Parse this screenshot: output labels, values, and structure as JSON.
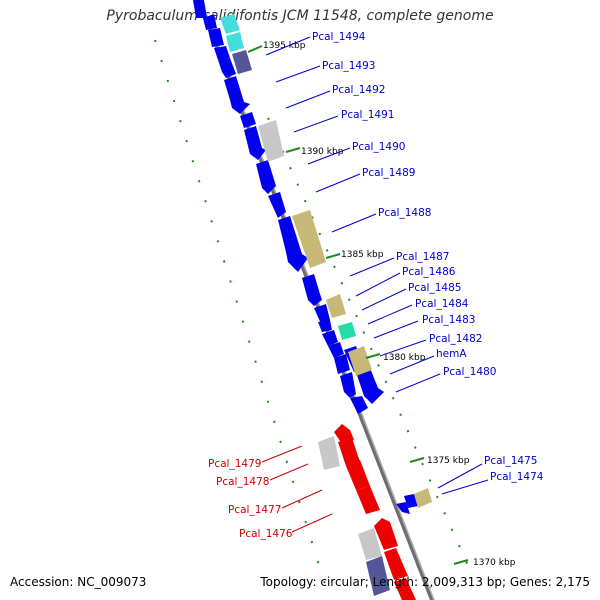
{
  "title": "Pyrobaculum calidifontis JCM 11548, complete genome",
  "accession_label": "Accession: NC_009073",
  "summary_label": "Topology: circular; Length: 2,009,313 bp; Genes: 2,175",
  "colors": {
    "backbone": "#8c8c8c",
    "forward_gene": "#0000ee",
    "reverse_gene": "#ee0000",
    "gray_feature": "#c8c8c8",
    "khaki_feature": "#c8b878",
    "cyan_feature": "#44dddd",
    "teal_feature": "#22ddaa",
    "navy_feature": "#555599",
    "forward_label": "#0000cc",
    "reverse_label": "#cc0000",
    "tick_marks": "#228822"
  },
  "kbp_markers": [
    {
      "label": "1395 kbp"
    },
    {
      "label": "1390 kbp"
    },
    {
      "label": "1385 kbp"
    },
    {
      "label": "1380 kbp"
    },
    {
      "label": "1375 kbp"
    },
    {
      "label": "1370 kbp"
    }
  ],
  "forward_labels": [
    {
      "label": "Pcal_1494"
    },
    {
      "label": "Pcal_1493"
    },
    {
      "label": "Pcal_1492"
    },
    {
      "label": "Pcal_1491"
    },
    {
      "label": "Pcal_1490"
    },
    {
      "label": "Pcal_1489"
    },
    {
      "label": "Pcal_1488"
    },
    {
      "label": "Pcal_1487"
    },
    {
      "label": "Pcal_1486"
    },
    {
      "label": "Pcal_1485"
    },
    {
      "label": "Pcal_1484"
    },
    {
      "label": "Pcal_1483"
    },
    {
      "label": "Pcal_1482"
    },
    {
      "label": "hemA"
    },
    {
      "label": "Pcal_1480"
    },
    {
      "label": "Pcal_1475"
    },
    {
      "label": "Pcal_1474"
    }
  ],
  "reverse_labels": [
    {
      "label": "Pcal_1479"
    },
    {
      "label": "Pcal_1478"
    },
    {
      "label": "Pcal_1477"
    },
    {
      "label": "Pcal_1476"
    }
  ]
}
